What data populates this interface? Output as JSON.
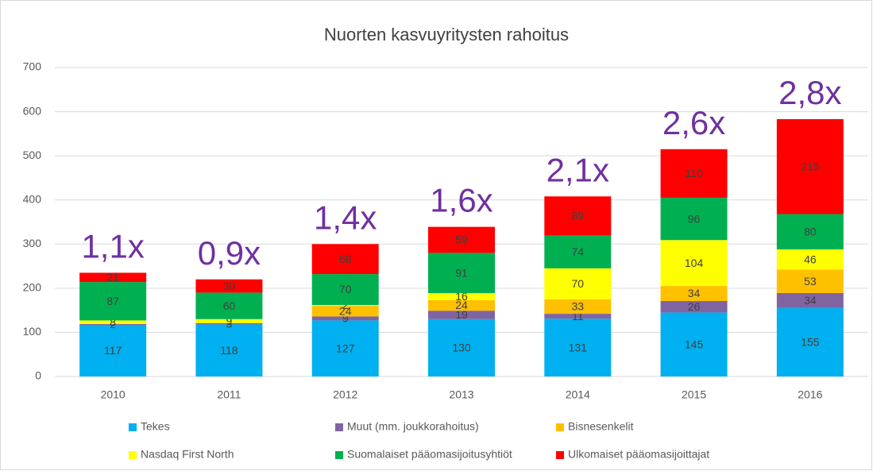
{
  "chart_data": {
    "type": "stacked_bar",
    "title": "Nuorten kasvuyritysten rahoitus",
    "categories": [
      "2010",
      "2011",
      "2012",
      "2013",
      "2014",
      "2015",
      "2016"
    ],
    "series": [
      {
        "name": "Tekes",
        "color": "#00b0f0",
        "values": [
          117,
          118,
          127,
          130,
          131,
          145,
          155
        ]
      },
      {
        "name": "Muut (mm. joukkorahoitus)",
        "color": "#8064a2",
        "values": [
          2,
          3,
          9,
          19,
          11,
          26,
          34
        ]
      },
      {
        "name": "Bisnesenkelit",
        "color": "#ffc000",
        "values": [
          null,
          null,
          24,
          24,
          33,
          34,
          53
        ]
      },
      {
        "name": "Nasdaq First North",
        "color": "#ffff00",
        "values": [
          8,
          9,
          2,
          16,
          70,
          104,
          46
        ]
      },
      {
        "name": "Suomalaiset pääomasijoitusyhtiöt",
        "color": "#00b050",
        "values": [
          87,
          60,
          70,
          91,
          74,
          96,
          80
        ]
      },
      {
        "name": "Ulkomaiset pääomasijoittajat",
        "color": "#ff0000",
        "values": [
          21,
          30,
          68,
          59,
          89,
          110,
          215
        ]
      }
    ],
    "annotations": [
      "1,1x",
      "0,9x",
      "1,4x",
      "1,6x",
      "2,1x",
      "2,6x",
      "2,8x"
    ],
    "ylim": [
      0,
      700
    ],
    "yticks": [
      0,
      100,
      200,
      300,
      400,
      500,
      600,
      700
    ],
    "grid": true
  }
}
